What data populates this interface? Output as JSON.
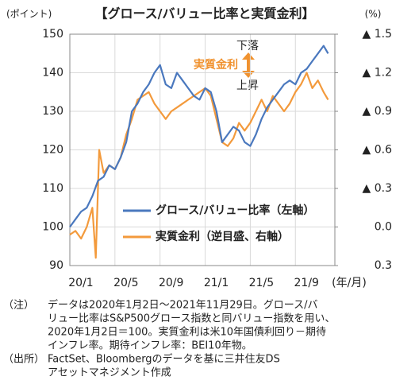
{
  "chart_data": {
    "type": "line",
    "title": "【グロース/バリュー比率と実質金利】",
    "y_unit": "(ポイント)",
    "y2_unit": "(%)",
    "x_unit": "(年/月)",
    "xlim": [
      0,
      23.5
    ],
    "xticks": [
      {
        "value": 0,
        "label": "20/1"
      },
      {
        "value": 4,
        "label": "20/5"
      },
      {
        "value": 8,
        "label": "20/9"
      },
      {
        "value": 12,
        "label": "21/1"
      },
      {
        "value": 16,
        "label": "21/5"
      },
      {
        "value": 20,
        "label": "21/9"
      }
    ],
    "ylim": [
      90,
      150
    ],
    "yticks": [
      90,
      100,
      110,
      120,
      130,
      140,
      150
    ],
    "y2lim": [
      0.3,
      -1.5
    ],
    "y2ticks": [
      {
        "value": -1.5,
        "label": "▲ 1.5"
      },
      {
        "value": -1.2,
        "label": "▲ 1.2"
      },
      {
        "value": -0.9,
        "label": "▲ 0.9"
      },
      {
        "value": -0.6,
        "label": "▲ 0.6"
      },
      {
        "value": -0.3,
        "label": "▲ 0.3"
      },
      {
        "value": 0,
        "label": "0.0"
      },
      0.3
    ],
    "grid": true,
    "series": [
      {
        "name": "グロース/バリュー比率（左軸）",
        "color": "#4a78be",
        "x": [
          0,
          0.5,
          1,
          1.5,
          2,
          2.5,
          3,
          3.5,
          4,
          4.5,
          5,
          5.5,
          6,
          6.5,
          7,
          7.5,
          8,
          8.5,
          9,
          9.5,
          10,
          10.5,
          11,
          11.5,
          12,
          12.5,
          13,
          13.5,
          14,
          14.5,
          15,
          15.5,
          16,
          16.5,
          17,
          17.5,
          18,
          18.5,
          19,
          19.5,
          20,
          20.5,
          21,
          21.5,
          22,
          22.5,
          22.9
        ],
        "values": [
          100,
          102,
          104,
          105,
          108,
          112,
          113,
          116,
          115,
          118,
          122,
          130,
          132,
          135,
          137,
          140,
          142,
          137,
          136,
          140,
          138,
          136,
          134,
          133,
          136,
          135,
          130,
          122,
          124,
          126,
          125,
          122,
          121,
          124,
          128,
          131,
          133,
          135,
          137,
          138,
          137,
          140,
          141,
          143,
          145,
          147,
          145
        ]
      },
      {
        "name": "実質金利（逆目盛、右軸）",
        "color": "#f39a3c",
        "axis": "y2",
        "x": [
          0,
          0.5,
          1,
          1.5,
          2,
          2.3,
          2.6,
          3,
          3.5,
          4,
          4.5,
          5,
          5.5,
          6,
          6.5,
          7,
          7.5,
          8,
          8.5,
          9,
          9.5,
          10,
          10.5,
          11,
          11.5,
          12,
          12.5,
          13,
          13.5,
          14,
          14.5,
          15,
          15.5,
          16,
          16.5,
          17,
          17.5,
          18,
          18.5,
          19,
          19.5,
          20,
          20.5,
          21,
          21.5,
          22,
          22.5,
          22.9
        ],
        "values": [
          0.06,
          0.03,
          0.09,
          0.0,
          -0.15,
          0.24,
          -0.6,
          -0.42,
          -0.48,
          -0.45,
          -0.54,
          -0.72,
          -0.84,
          -0.99,
          -1.02,
          -1.05,
          -0.96,
          -0.9,
          -0.84,
          -0.9,
          -0.93,
          -0.96,
          -0.99,
          -1.02,
          -1.05,
          -1.08,
          -1.02,
          -0.84,
          -0.66,
          -0.63,
          -0.69,
          -0.81,
          -0.75,
          -0.81,
          -0.9,
          -0.99,
          -0.9,
          -1.02,
          -0.96,
          -0.9,
          -0.96,
          -1.05,
          -1.11,
          -1.2,
          -1.08,
          -1.14,
          -1.05,
          -0.99
        ]
      }
    ],
    "annotations": {
      "down": "下落",
      "up": "上昇",
      "label": "実質金利"
    },
    "notes": {
      "note_label": "（注）",
      "note_lines": [
        "データは2020年1月2日～2021年11月29日。グロース/バ",
        "リュー比率はS&P500グロース指数と同バリュー指数を用い、",
        "2020年1月2日＝100。実質金利は米10年国債利回り－期待",
        "インフレ率。期待インフレ率：BEI10年物。"
      ],
      "source_label": "（出所）",
      "source_lines": [
        "FactSet、Bloombergのデータを基に三井住友DS",
        "アセットマネジメント作成"
      ]
    }
  }
}
